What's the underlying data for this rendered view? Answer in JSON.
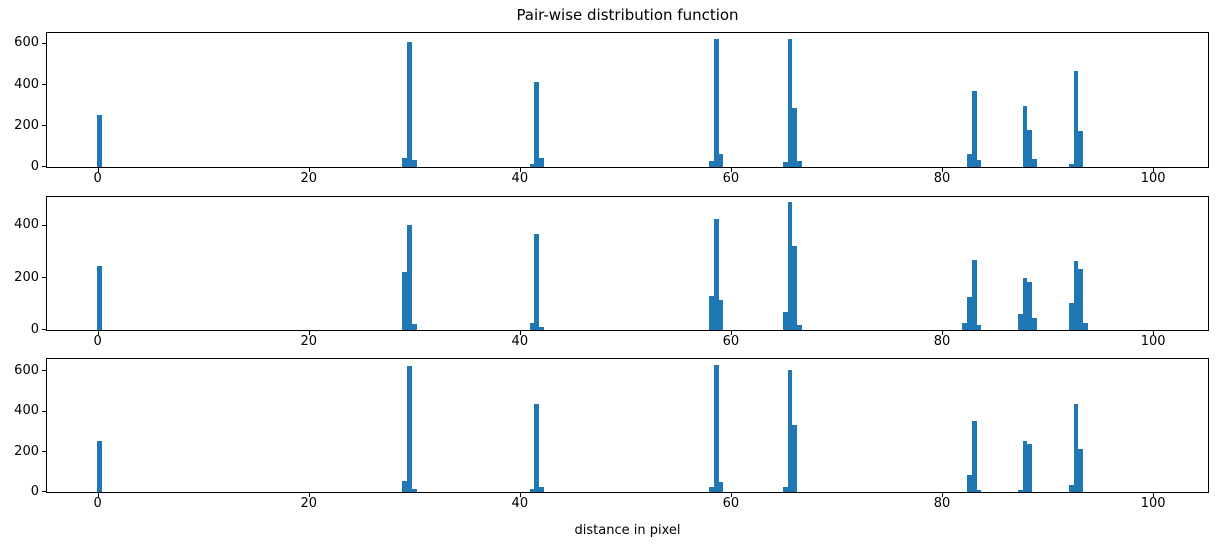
{
  "title": "Pair-wise distribution function",
  "xlabel": "distance in pixel",
  "colors": {
    "bar": "#1f77b4",
    "axis": "#000000",
    "background": "#ffffff"
  },
  "chart_data": [
    {
      "type": "bar",
      "subplot": "top",
      "title": "",
      "xlabel": "",
      "ylabel": "",
      "grid": false,
      "legend": null,
      "xlim": [
        -4.8,
        105.2
      ],
      "ylim": [
        0,
        650
      ],
      "xticks": [
        0,
        20,
        40,
        60,
        80,
        100
      ],
      "yticks": [
        0,
        200,
        400,
        600
      ],
      "bin_width": 0.45,
      "bars": [
        [
          0.2,
          250
        ],
        [
          29.1,
          45
        ],
        [
          29.55,
          608
        ],
        [
          30.0,
          33
        ],
        [
          41.15,
          14
        ],
        [
          41.6,
          414
        ],
        [
          42.05,
          44
        ],
        [
          58.15,
          30
        ],
        [
          58.6,
          620
        ],
        [
          59.05,
          62
        ],
        [
          65.15,
          25
        ],
        [
          65.6,
          622
        ],
        [
          66.05,
          285
        ],
        [
          66.5,
          30
        ],
        [
          82.6,
          65
        ],
        [
          83.05,
          370
        ],
        [
          83.5,
          35
        ],
        [
          87.85,
          295
        ],
        [
          88.3,
          180
        ],
        [
          88.75,
          40
        ],
        [
          92.25,
          15
        ],
        [
          92.7,
          467
        ],
        [
          93.15,
          175
        ]
      ]
    },
    {
      "type": "bar",
      "subplot": "middle",
      "title": "",
      "xlabel": "",
      "ylabel": "",
      "grid": false,
      "legend": null,
      "xlim": [
        -4.8,
        105.2
      ],
      "ylim": [
        0,
        508
      ],
      "xticks": [
        0,
        20,
        40,
        60,
        80,
        100
      ],
      "yticks": [
        0,
        200,
        400
      ],
      "bin_width": 0.45,
      "bars": [
        [
          0.2,
          246
        ],
        [
          29.1,
          221
        ],
        [
          29.55,
          402
        ],
        [
          30.0,
          22
        ],
        [
          41.15,
          28
        ],
        [
          41.6,
          368
        ],
        [
          42.05,
          12
        ],
        [
          58.15,
          131
        ],
        [
          58.6,
          424
        ],
        [
          59.05,
          116
        ],
        [
          65.15,
          68
        ],
        [
          65.6,
          490
        ],
        [
          66.05,
          322
        ],
        [
          66.5,
          18
        ],
        [
          82.15,
          25
        ],
        [
          82.6,
          127
        ],
        [
          83.05,
          268
        ],
        [
          83.5,
          21
        ],
        [
          87.4,
          60
        ],
        [
          87.85,
          199
        ],
        [
          88.3,
          183
        ],
        [
          88.75,
          46
        ],
        [
          92.25,
          104
        ],
        [
          92.7,
          265
        ],
        [
          93.15,
          233
        ],
        [
          93.6,
          25
        ]
      ]
    },
    {
      "type": "bar",
      "subplot": "bottom",
      "title": "",
      "xlabel": "distance in pixel",
      "ylabel": "",
      "grid": false,
      "legend": null,
      "xlim": [
        -4.8,
        105.2
      ],
      "ylim": [
        0,
        658
      ],
      "xticks": [
        0,
        20,
        40,
        60,
        80,
        100
      ],
      "yticks": [
        0,
        200,
        400,
        600
      ],
      "bin_width": 0.45,
      "bars": [
        [
          0.2,
          250
        ],
        [
          29.1,
          55
        ],
        [
          29.55,
          625
        ],
        [
          30.0,
          15
        ],
        [
          41.15,
          15
        ],
        [
          41.6,
          437
        ],
        [
          42.05,
          25
        ],
        [
          58.15,
          25
        ],
        [
          58.6,
          628
        ],
        [
          59.05,
          50
        ],
        [
          65.15,
          24
        ],
        [
          65.6,
          603
        ],
        [
          66.05,
          330
        ],
        [
          82.6,
          82
        ],
        [
          83.05,
          350
        ],
        [
          83.5,
          8
        ],
        [
          87.4,
          12
        ],
        [
          87.85,
          251
        ],
        [
          88.3,
          240
        ],
        [
          92.25,
          33
        ],
        [
          92.7,
          433
        ],
        [
          93.15,
          212
        ]
      ]
    }
  ]
}
